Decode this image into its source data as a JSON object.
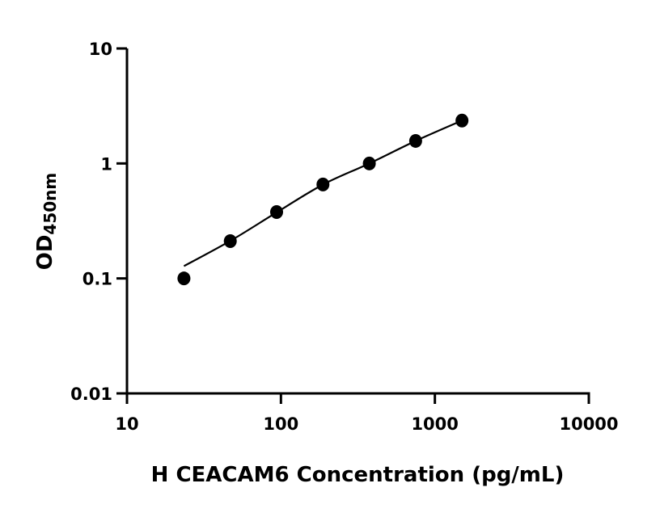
{
  "chart_data": {
    "type": "scatter",
    "title": "",
    "xlabel": "H CEACAM6 Concentration (pg/mL)",
    "ylabel": "OD",
    "ylabel_subscript": "450nm",
    "x_scale": "log",
    "y_scale": "log",
    "xlim": [
      10,
      10000
    ],
    "ylim": [
      0.01,
      10
    ],
    "x_ticks": [
      "10",
      "100",
      "1000",
      "10000"
    ],
    "y_ticks": [
      "0.01",
      "0.1",
      "1",
      "10"
    ],
    "grid": false,
    "marker_color": "#000000",
    "points": {
      "x": [
        23.44,
        46.88,
        93.75,
        187.5,
        375,
        750,
        1500
      ],
      "y": [
        0.1,
        0.211,
        0.378,
        0.656,
        1.0,
        1.57,
        2.36
      ]
    },
    "fit_curve": {
      "x": [
        23.44,
        46.88,
        93.75,
        187.5,
        375,
        750,
        1500
      ],
      "y": [
        0.128,
        0.212,
        0.375,
        0.655,
        1.0,
        1.57,
        2.36
      ]
    }
  }
}
